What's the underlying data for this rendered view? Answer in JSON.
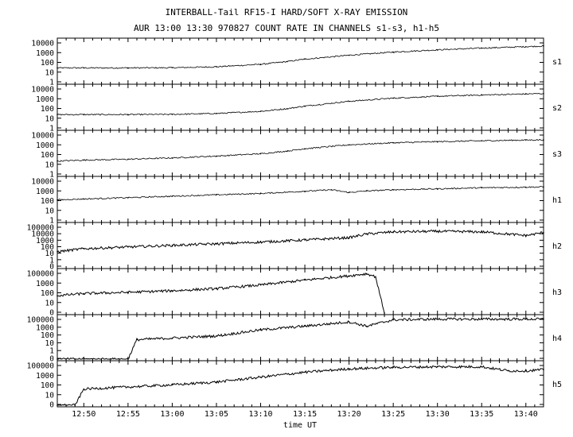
{
  "chart_data": {
    "type": "line",
    "title": "INTERBALL-Tail RF15-I HARD/SOFT X-RAY EMISSION",
    "subtitle": "AUR 13:00 13:30 970827  COUNT RATE IN CHANNELS s1-s3, h1-h5",
    "xlabel": "time UT",
    "x_ticks": [
      "12:50",
      "12:55",
      "13:00",
      "13:05",
      "13:10",
      "13:15",
      "13:20",
      "13:25",
      "13:30",
      "13:35",
      "13:40"
    ],
    "x_range": [
      "12:47",
      "13:42"
    ],
    "y_scale": "log",
    "grid": false,
    "series": [
      {
        "name": "s1",
        "yticks": [
          "10000",
          "1000",
          "100",
          "10",
          "1"
        ],
        "ylim": [
          1,
          10000
        ],
        "x": [
          "12:47",
          "12:50",
          "12:55",
          "13:00",
          "13:05",
          "13:10",
          "13:13",
          "13:15",
          "13:20",
          "13:25",
          "13:30",
          "13:35",
          "13:40",
          "13:42"
        ],
        "values": [
          25,
          25,
          25,
          26,
          32,
          55,
          100,
          170,
          400,
          800,
          1300,
          1900,
          2600,
          3000
        ]
      },
      {
        "name": "s2",
        "yticks": [
          "10000",
          "1000",
          "100",
          "10",
          "1"
        ],
        "ylim": [
          1,
          10000
        ],
        "x": [
          "12:47",
          "12:50",
          "12:55",
          "13:00",
          "13:05",
          "13:10",
          "13:13",
          "13:15",
          "13:20",
          "13:25",
          "13:30",
          "13:35",
          "13:40",
          "13:42"
        ],
        "values": [
          22,
          22,
          22,
          23,
          28,
          45,
          80,
          140,
          400,
          800,
          1200,
          1600,
          2000,
          2200
        ]
      },
      {
        "name": "s3",
        "yticks": [
          "10000",
          "1000",
          "100",
          "10",
          "1"
        ],
        "ylim": [
          1,
          10000
        ],
        "x": [
          "12:47",
          "12:50",
          "12:55",
          "13:00",
          "13:05",
          "13:10",
          "13:13",
          "13:15",
          "13:20",
          "13:25",
          "13:30",
          "13:35",
          "13:40",
          "13:42"
        ],
        "values": [
          20,
          25,
          30,
          40,
          60,
          100,
          180,
          300,
          700,
          1100,
          1400,
          1700,
          2000,
          2100
        ]
      },
      {
        "name": "h1",
        "yticks": [
          "10000",
          "1000",
          "100",
          "10",
          "1"
        ],
        "ylim": [
          1,
          10000
        ],
        "x": [
          "12:47",
          "12:50",
          "12:55",
          "13:00",
          "13:05",
          "13:10",
          "13:15",
          "13:18",
          "13:20",
          "13:22",
          "13:25",
          "13:30",
          "13:35",
          "13:40",
          "13:42"
        ],
        "values": [
          100,
          120,
          160,
          220,
          300,
          400,
          650,
          900,
          500,
          700,
          900,
          1100,
          1400,
          1600,
          1700
        ]
      },
      {
        "name": "h2",
        "yticks": [
          "100000",
          "10000",
          "1000",
          "100",
          "10",
          "1",
          "0"
        ],
        "ylim": [
          0.1,
          100000
        ],
        "x": [
          "12:47",
          "12:50",
          "12:55",
          "13:00",
          "13:05",
          "13:10",
          "13:15",
          "13:20",
          "13:22",
          "13:25",
          "13:30",
          "13:35",
          "13:40",
          "13:42"
        ],
        "values": [
          15,
          40,
          70,
          120,
          200,
          350,
          700,
          1500,
          5000,
          10000,
          12000,
          10000,
          3000,
          8000
        ]
      },
      {
        "name": "h3",
        "yticks": [
          "100000",
          "1000",
          "100",
          "10",
          "0"
        ],
        "ylim": [
          0.1,
          100000
        ],
        "x": [
          "12:47",
          "12:50",
          "12:55",
          "13:00",
          "13:05",
          "13:10",
          "13:15",
          "13:20",
          "13:22",
          "13:23",
          "13:24"
        ],
        "values": [
          30,
          60,
          90,
          150,
          300,
          1000,
          5000,
          20000,
          40000,
          15000,
          0.1
        ]
      },
      {
        "name": "h4",
        "yticks": [
          "100000",
          "1000",
          "100",
          "10",
          "1",
          "0"
        ],
        "ylim": [
          0.1,
          100000
        ],
        "x": [
          "12:47",
          "12:55",
          "12:56",
          "13:00",
          "13:05",
          "13:10",
          "13:15",
          "13:20",
          "13:22",
          "13:25",
          "13:30",
          "13:35",
          "13:40",
          "13:42"
        ],
        "values": [
          0.1,
          0.1,
          60,
          100,
          200,
          1500,
          5000,
          20000,
          5000,
          40000,
          50000,
          50000,
          50000,
          50000
        ]
      },
      {
        "name": "h5",
        "yticks": [
          "100000",
          "1000",
          "100",
          "10",
          "0"
        ],
        "ylim": [
          0.1,
          100000
        ],
        "x": [
          "12:47",
          "12:49",
          "12:50",
          "12:55",
          "13:00",
          "13:05",
          "13:10",
          "13:15",
          "13:20",
          "13:25",
          "13:30",
          "13:35",
          "13:38",
          "13:40",
          "13:42"
        ],
        "values": [
          0.1,
          0.1,
          20,
          40,
          80,
          200,
          1000,
          5000,
          15000,
          25000,
          30000,
          30000,
          8000,
          8000,
          12000
        ]
      }
    ]
  }
}
